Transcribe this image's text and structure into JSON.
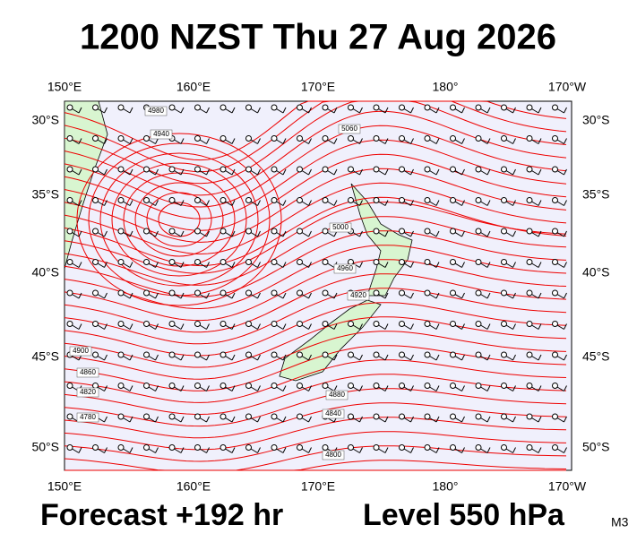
{
  "header": {
    "title": "1200 NZST Thu 27 Aug 2026"
  },
  "map": {
    "lon_labels": [
      "150°E",
      "160°E",
      "170°E",
      "180°",
      "170°W"
    ],
    "lat_labels": [
      "30°S",
      "35°S",
      "40°S",
      "45°S",
      "50°S"
    ],
    "contour_labels": [
      "4980",
      "4940",
      "4900",
      "4860",
      "4820",
      "4780",
      "5060",
      "5000",
      "4960",
      "4920",
      "4880",
      "4840",
      "4800"
    ]
  },
  "footer": {
    "forecast": "Forecast +192 hr",
    "level": "Level 550 hPa",
    "model": "M3"
  }
}
